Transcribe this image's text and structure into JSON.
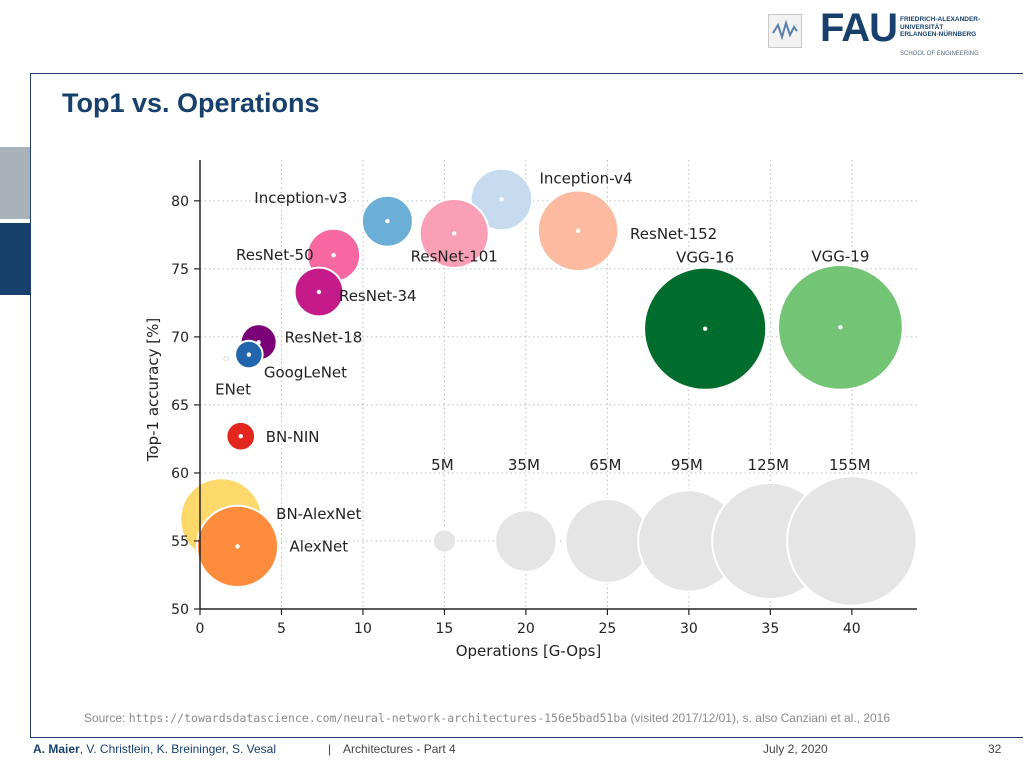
{
  "slide": {
    "title": "Top1 vs. Operations",
    "source_prefix": "Source: ",
    "source_url": "https://towardsdatascience.com/neural-network-architectures-156e5bad51ba",
    "source_suffix": " (visited 2017/12/01), s. also Canziani et al., 2016"
  },
  "logo": {
    "letters": "FAU",
    "line1": "FRIEDRICH-ALEXANDER-",
    "line2": "UNIVERSITÄT",
    "line3": "ERLANGEN-NÜRNBERG",
    "school": "SCHOOL OF ENGINEERING"
  },
  "footer": {
    "author_main": "A. Maier",
    "author_rest": ", V. Christlein, K. Breininger, S. Vesal",
    "separator": "|",
    "lecture": "Architectures - Part 4",
    "date": "July 2, 2020",
    "page": "32"
  },
  "chart_data": {
    "type": "scatter",
    "xlabel": "Operations [G-Ops]",
    "ylabel": "Top-1 accuracy [%]",
    "xlim": [
      0,
      44
    ],
    "ylim": [
      50,
      83
    ],
    "xticks": [
      0,
      5,
      10,
      15,
      20,
      25,
      30,
      35,
      40
    ],
    "yticks": [
      50,
      55,
      60,
      65,
      70,
      75,
      80
    ],
    "grid": true,
    "points": [
      {
        "label": "Inception-v4",
        "x": 18.5,
        "y": 80.1,
        "params": 35,
        "color": "#c6dbef"
      },
      {
        "label": "ResNet-152",
        "x": 23.2,
        "y": 77.8,
        "params": 60,
        "color": "#fcbba1"
      },
      {
        "label": "ResNet-101",
        "x": 15.6,
        "y": 77.6,
        "params": 44,
        "color": "#fa9fb5"
      },
      {
        "label": "Inception-v3",
        "x": 11.5,
        "y": 78.5,
        "params": 24,
        "color": "#6baed6"
      },
      {
        "label": "ResNet-50",
        "x": 8.2,
        "y": 76.0,
        "params": 26,
        "color": "#f768a1"
      },
      {
        "label": "ResNet-34",
        "x": 7.3,
        "y": 73.3,
        "params": 22,
        "color": "#c51b8a"
      },
      {
        "label": "ResNet-18",
        "x": 3.6,
        "y": 69.6,
        "params": 12,
        "color": "#7a0177"
      },
      {
        "label": "GoogLeNet",
        "x": 3.0,
        "y": 68.7,
        "params": 7,
        "color": "#2166ac"
      },
      {
        "label": "ENet",
        "x": 1.6,
        "y": 68.4,
        "params": 0.4,
        "color": "#111111"
      },
      {
        "label": "BN-NIN",
        "x": 2.5,
        "y": 62.7,
        "params": 7.6,
        "color": "#e3261f"
      },
      {
        "label": "VGG-16",
        "x": 31.0,
        "y": 70.6,
        "params": 138,
        "color": "#006d2c"
      },
      {
        "label": "VGG-19",
        "x": 39.3,
        "y": 70.7,
        "params": 144,
        "color": "#74c476"
      },
      {
        "label": "BN-AlexNet",
        "x": 1.3,
        "y": 56.6,
        "params": 62,
        "color": "#fdd86a"
      },
      {
        "label": "AlexNet",
        "x": 2.3,
        "y": 54.6,
        "params": 61,
        "color": "#fd8d3c"
      }
    ],
    "size_legend": [
      {
        "label": "5M",
        "x": 15,
        "y": 55,
        "params": 5
      },
      {
        "label": "35M",
        "x": 20,
        "y": 55,
        "params": 35
      },
      {
        "label": "65M",
        "x": 25,
        "y": 55,
        "params": 65
      },
      {
        "label": "95M",
        "x": 30,
        "y": 55,
        "params": 95
      },
      {
        "label": "125M",
        "x": 35,
        "y": 55,
        "params": 125
      },
      {
        "label": "155M",
        "x": 40,
        "y": 55,
        "params": 155
      }
    ],
    "size_legend_color": "#e5e5e5"
  }
}
